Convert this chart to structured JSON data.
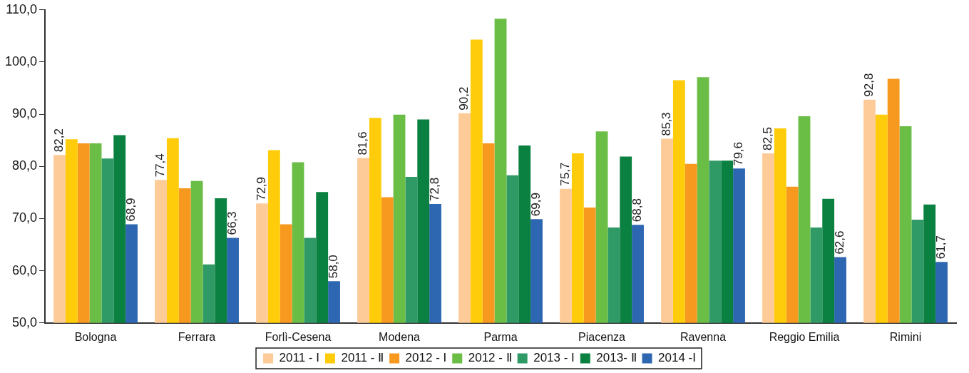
{
  "chart_data": {
    "type": "bar",
    "categories": [
      "Bologna",
      "Ferrara",
      "Forlì-Cesena",
      "Modena",
      "Parma",
      "Piacenza",
      "Ravenna",
      "Reggio Emilia",
      "Rimini"
    ],
    "series": [
      {
        "name": "2011 - I",
        "color": "#fdcb98",
        "values": [
          82.2,
          77.4,
          72.9,
          81.6,
          90.2,
          75.7,
          85.3,
          82.5,
          92.8
        ],
        "value_labels": [
          "82,2",
          "77,4",
          "72,9",
          "81,6",
          "90,2",
          "75,7",
          "85,3",
          "82,5",
          "92,8"
        ]
      },
      {
        "name": "2011 - Ⅱ",
        "color": "#fecc0a",
        "values": [
          85.2,
          85.4,
          83.1,
          89.3,
          104.3,
          82.5,
          96.5,
          87.3,
          89.9
        ]
      },
      {
        "name": "2012 - I",
        "color": "#f7981f",
        "values": [
          84.4,
          75.8,
          68.9,
          74.1,
          84.4,
          72.1,
          80.5,
          76.1,
          96.8
        ]
      },
      {
        "name": "2012 - Ⅱ",
        "color": "#6abd45",
        "values": [
          84.4,
          77.2,
          80.8,
          89.9,
          108.3,
          86.7,
          97.1,
          89.6,
          87.7
        ]
      },
      {
        "name": "2013 - I",
        "color": "#309a66",
        "values": [
          81.5,
          61.2,
          66.3,
          78.0,
          78.3,
          68.3,
          81.1,
          68.3,
          69.8
        ]
      },
      {
        "name": "2013- Ⅱ",
        "color": "#0a8140",
        "values": [
          86.0,
          73.9,
          75.1,
          89.0,
          84.0,
          81.9,
          81.1,
          73.8,
          72.7
        ]
      },
      {
        "name": "2014 -I",
        "color": "#2e67b1",
        "values": [
          68.9,
          66.3,
          58.0,
          72.8,
          69.9,
          68.8,
          79.6,
          62.6,
          61.7
        ],
        "value_labels": [
          "68,9",
          "66,3",
          "58,0",
          "72,8",
          "69,9",
          "68,8",
          "79,6",
          "62,6",
          "61,7"
        ]
      }
    ],
    "ylim": [
      50,
      110
    ],
    "yticks": [
      {
        "value": 50,
        "label": "50,0"
      },
      {
        "value": 60,
        "label": "60,0"
      },
      {
        "value": 70,
        "label": "70,0"
      },
      {
        "value": 80,
        "label": "80,0"
      },
      {
        "value": 90,
        "label": "90,0"
      },
      {
        "value": 100,
        "label": "100,0"
      },
      {
        "value": 110,
        "label": "110,0"
      }
    ],
    "grid": false,
    "legend": "bottom"
  }
}
